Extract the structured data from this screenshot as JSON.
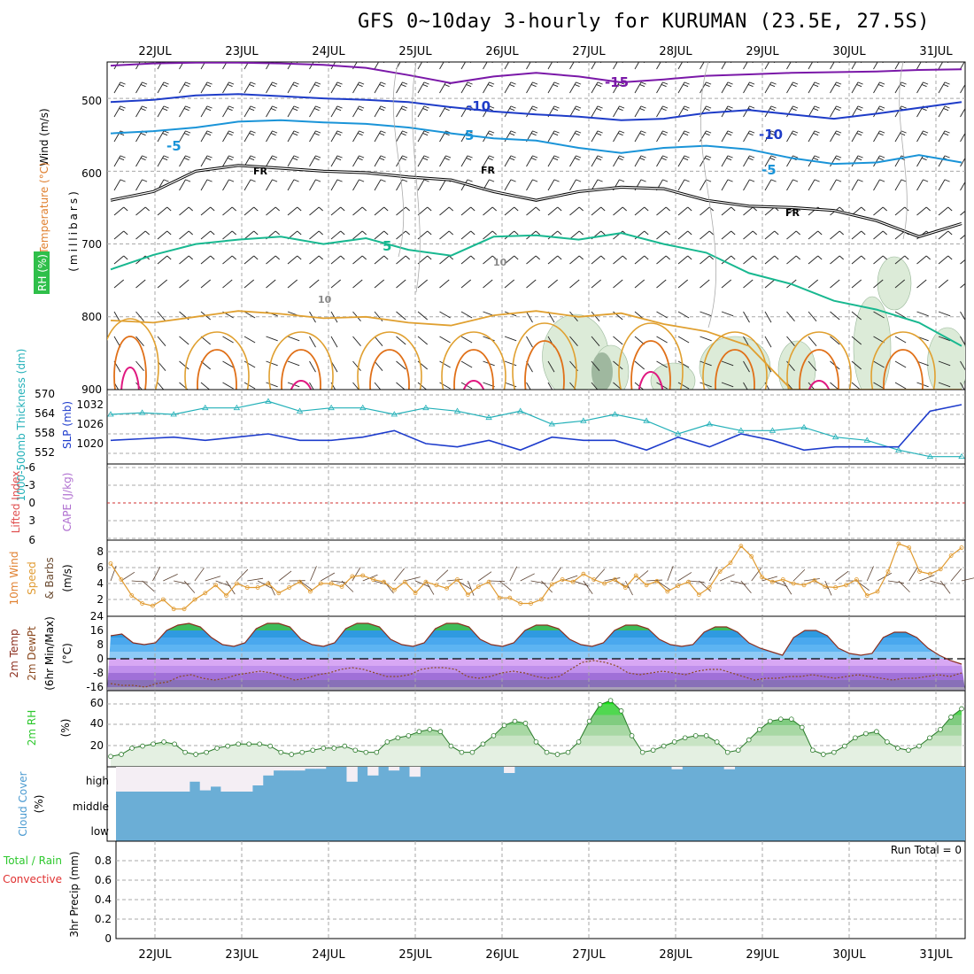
{
  "title": "GFS 0~10day 3-hourly for KURUMAN (23.5E, 27.5S)",
  "dates": [
    "22JUL",
    "23JUL",
    "24JUL",
    "25JUL",
    "26JUL",
    "27JUL",
    "28JUL",
    "29JUL",
    "30JUL",
    "31JUL"
  ],
  "run_total": "Run Total = 0",
  "colors": {
    "grid": "#a8a8a8",
    "slp": "#1e3ccc",
    "thickness": "#22b0b8",
    "wind_speed": "#e09a30",
    "barb": "#5a4030",
    "temp_line": "#8b2e1e",
    "rh_fill": "#2ec82e",
    "cloud": "#6baed6",
    "cloud_clear": "#f4eef4",
    "li_zero": "#d03030",
    "upper_cold": "#7a18a8",
    "upper_m10": "#1e3cc8",
    "upper_m5": "#1a94d8",
    "upper_fr": "#000000",
    "upper_p5": "#18b890",
    "upper_p10": "#e0a030",
    "upper_p15": "#e07018",
    "upper_p20": "#e01880"
  },
  "chart_data": [
    {
      "type": "contour",
      "panel": "upper",
      "ylabel_parts": [
        "Wind (m/s)",
        "Temperature (°C)",
        "(millibars)",
        "RH (%)"
      ],
      "yticks": [
        "500",
        "600",
        "700",
        "800",
        "900"
      ],
      "ylim": [
        450,
        900
      ],
      "isotherm_labels": [
        "-15",
        "-10",
        "-10",
        "-5",
        "5",
        "-5",
        "FR",
        "FR",
        "FR",
        "5",
        "10",
        "10"
      ],
      "isotherms": [
        {
          "label": "-15",
          "level": [
            455,
            452,
            451,
            451,
            452,
            454,
            458,
            468,
            479,
            470,
            465,
            470,
            478,
            474,
            469,
            467,
            465,
            464,
            463,
            461,
            460
          ]
        },
        {
          "label": "-10",
          "level": [
            505,
            502,
            496,
            494,
            497,
            500,
            502,
            505,
            512,
            518,
            522,
            525,
            530,
            528,
            520,
            516,
            522,
            528,
            521,
            513,
            505
          ]
        },
        {
          "label": "-5",
          "level": [
            548,
            545,
            540,
            532,
            530,
            533,
            535,
            540,
            548,
            555,
            558,
            568,
            575,
            568,
            565,
            570,
            582,
            590,
            588,
            578,
            588
          ]
        },
        {
          "label": "FR",
          "level": [
            640,
            628,
            600,
            592,
            596,
            600,
            602,
            608,
            612,
            628,
            640,
            628,
            622,
            624,
            640,
            648,
            650,
            654,
            668,
            690,
            672
          ]
        },
        {
          "label": "5",
          "level": [
            735,
            715,
            700,
            694,
            690,
            700,
            692,
            708,
            716,
            690,
            688,
            694,
            685,
            700,
            712,
            740,
            755,
            778,
            790,
            808,
            840
          ]
        }
      ]
    },
    {
      "type": "line",
      "panel": "slp_thickness",
      "ylabel_parts": [
        "1000-500mb Thickness (dm)",
        "SLP (mb)"
      ],
      "thickness_ticks": [
        "570",
        "564",
        "558",
        "552"
      ],
      "slp_ticks": [
        "1032",
        "1026",
        "1020"
      ],
      "series": [
        {
          "name": "SLP (mb)",
          "values": [
            1021,
            1021.5,
            1022,
            1021,
            1022,
            1023,
            1021,
            1021,
            1022,
            1024,
            1020,
            1019,
            1021,
            1018,
            1022,
            1021,
            1021,
            1018,
            1022,
            1019,
            1023,
            1021,
            1018,
            1019,
            1019,
            1019,
            1030,
            1032
          ]
        },
        {
          "name": "1000-500mb Thickness (dm)",
          "values": [
            564,
            564.5,
            564,
            566,
            566,
            568,
            565,
            566,
            566,
            564,
            566,
            565,
            563,
            565,
            561,
            562,
            564,
            562,
            558,
            561,
            559,
            559,
            560,
            557,
            556,
            553,
            551,
            551
          ]
        }
      ]
    },
    {
      "type": "line",
      "panel": "cape_li",
      "ylabel_parts": [
        "Lifted Index",
        "CAPE (J/kg)"
      ],
      "yticks": [
        "-6",
        "-3",
        "0",
        "3",
        "6"
      ],
      "values": [
        0,
        0,
        0,
        0,
        0,
        0,
        0,
        0,
        0,
        0
      ]
    },
    {
      "type": "line",
      "panel": "wind10m",
      "ylabel_parts": [
        "10m Wind",
        "Speed",
        "& Barbs",
        "(m/s)"
      ],
      "yticks": [
        "2",
        "4",
        "6",
        "8"
      ],
      "values": [
        6.5,
        4.5,
        2.5,
        1.5,
        1.2,
        2,
        0.8,
        0.8,
        2,
        2.8,
        3.8,
        2.5,
        4,
        3.5,
        3.5,
        4,
        2.8,
        3.5,
        4.2,
        3,
        4,
        4,
        3.6,
        4.9,
        5,
        4.5,
        4.2,
        3.2,
        4.2,
        2.8,
        4.2,
        3.8,
        3.4,
        4.5,
        2.6,
        3.6,
        4.2,
        2.2,
        2.2,
        1.5,
        1.5,
        2,
        3.9,
        4.5,
        4.2,
        5.2,
        4.5,
        4,
        4.5,
        3.5,
        5,
        3.8,
        4.3,
        3,
        3.7,
        4.2,
        2.6,
        3.5,
        5.5,
        6.6,
        8.7,
        7.4,
        4.8,
        4.2,
        4.5,
        4,
        3.8,
        4.4,
        3.6,
        3.5,
        3.8,
        4.5,
        2.5,
        3,
        5.5,
        9,
        8.5,
        5.5,
        5.2,
        5.8,
        7.5,
        8.5
      ]
    },
    {
      "type": "area",
      "panel": "temp2m",
      "ylabel_parts": [
        "2m Temp",
        "2m DewPt",
        "(6hr Min/Max)",
        "(°C)"
      ],
      "yticks": [
        "24",
        "16",
        "8",
        "0",
        "-8",
        "-16"
      ],
      "temp": [
        13,
        14,
        9,
        8,
        9,
        16,
        19,
        20,
        18,
        12,
        8,
        7,
        9,
        17,
        20,
        20,
        18,
        11,
        8,
        7,
        9,
        17,
        20,
        20,
        18,
        11,
        8,
        7,
        9,
        17,
        20,
        20,
        18,
        11,
        8,
        7,
        9,
        16,
        19,
        19,
        17,
        11,
        8,
        7,
        9,
        16,
        19,
        19,
        17,
        11,
        8,
        7,
        8,
        15,
        18,
        18,
        15,
        9,
        6,
        4,
        2,
        12,
        16,
        16,
        13,
        6,
        3,
        2,
        3,
        12,
        15,
        15,
        12,
        6,
        2,
        -1,
        -3
      ],
      "dewpoint": [
        -14,
        -15,
        -15,
        -16,
        -14,
        -13,
        -10,
        -9,
        -11,
        -12,
        -11,
        -9,
        -8,
        -7,
        -8,
        -10,
        -12,
        -11,
        -9,
        -8,
        -6,
        -5,
        -6,
        -8,
        -10,
        -10,
        -9,
        -6,
        -5,
        -5,
        -6,
        -10,
        -11,
        -10,
        -8,
        -7,
        -8,
        -10,
        -11,
        -10,
        -6,
        -2,
        -1,
        -2,
        -4,
        -8,
        -9,
        -8,
        -7,
        -8,
        -9,
        -7,
        -6,
        -6,
        -8,
        -10,
        -12,
        -11,
        -11,
        -10,
        -10,
        -9,
        -10,
        -11,
        -10,
        -9,
        -10,
        -11,
        -12,
        -11,
        -11,
        -10,
        -9,
        -10,
        -8
      ]
    },
    {
      "type": "area",
      "panel": "rh2m",
      "ylabel_parts": [
        "2m RH",
        "(%)"
      ],
      "yticks": [
        "20",
        "40",
        "60"
      ],
      "values": [
        10,
        12,
        18,
        20,
        22,
        24,
        22,
        14,
        12,
        14,
        18,
        20,
        22,
        22,
        22,
        20,
        14,
        12,
        14,
        16,
        18,
        18,
        20,
        16,
        14,
        14,
        24,
        28,
        30,
        34,
        36,
        34,
        20,
        14,
        14,
        22,
        30,
        40,
        44,
        42,
        24,
        14,
        12,
        14,
        24,
        44,
        60,
        64,
        54,
        30,
        14,
        16,
        20,
        24,
        28,
        30,
        30,
        24,
        14,
        16,
        26,
        36,
        44,
        46,
        46,
        38,
        16,
        12,
        14,
        20,
        28,
        32,
        34,
        24,
        18,
        16,
        20,
        28,
        36,
        48,
        56
      ]
    },
    {
      "type": "area",
      "panel": "cloud",
      "ylabel_parts": [
        "Cloud Cover",
        "(%)"
      ],
      "yticks": [
        "high",
        "middle",
        "low"
      ],
      "high_values": [
        100,
        100,
        100,
        100,
        100,
        100,
        100,
        60,
        95,
        80,
        100,
        100,
        100,
        75,
        35,
        15,
        15,
        15,
        8,
        8,
        5,
        5,
        60,
        5,
        35,
        5,
        15,
        5,
        40,
        5,
        5,
        5,
        5,
        5,
        5,
        5,
        5,
        25,
        5,
        5,
        5,
        5,
        5,
        5,
        5,
        5,
        5,
        5,
        5,
        5,
        5,
        5,
        5,
        10,
        5,
        5,
        5,
        5,
        10,
        5,
        5,
        5,
        5,
        5,
        5,
        5,
        5,
        5,
        5,
        5,
        5,
        5,
        5,
        5,
        5,
        5,
        5,
        5,
        5,
        5,
        5
      ],
      "middle_values": [
        100,
        100,
        100,
        100,
        100,
        100,
        100,
        100,
        100,
        100,
        100,
        100,
        100,
        100,
        100,
        100,
        100,
        100,
        100,
        100,
        100,
        100,
        100,
        100,
        100,
        100,
        100,
        100,
        100,
        100,
        100,
        100,
        100,
        100,
        100,
        100,
        100,
        100,
        100,
        100,
        100,
        100,
        100,
        100,
        100,
        100,
        100,
        100,
        100,
        100,
        100,
        100,
        100,
        100,
        100,
        100,
        100,
        100,
        100,
        100,
        100,
        100,
        100,
        100,
        100,
        100,
        100,
        100,
        100,
        100,
        100,
        100,
        100,
        100,
        100,
        100,
        100,
        100,
        100,
        100,
        100
      ],
      "low_values": [
        100,
        100,
        100,
        100,
        100,
        100,
        100,
        100,
        100,
        100,
        100,
        100,
        100,
        100,
        100,
        100,
        100,
        100,
        100,
        100,
        100,
        100,
        100,
        100,
        100,
        100,
        100,
        100,
        100,
        100,
        100,
        100,
        100,
        100,
        100,
        100,
        100,
        100,
        100,
        100,
        100,
        100,
        100,
        100,
        100,
        100,
        100,
        100,
        100,
        100,
        100,
        100,
        100,
        100,
        100,
        100,
        100,
        100,
        100,
        100,
        100,
        100,
        100,
        100,
        100,
        100,
        100,
        100,
        100,
        100,
        100,
        100,
        100,
        100,
        100,
        100,
        100,
        100,
        100,
        100,
        100
      ]
    },
    {
      "type": "bar",
      "panel": "precip",
      "ylabel_parts": [
        "Total / Rain",
        "Convective",
        "3hr Precip (mm)"
      ],
      "yticks": [
        "0",
        "0.2",
        "0.4",
        "0.6",
        "0.8"
      ],
      "ylim": [
        0,
        1
      ],
      "values": [
        0,
        0,
        0,
        0,
        0,
        0,
        0,
        0,
        0,
        0
      ]
    }
  ]
}
